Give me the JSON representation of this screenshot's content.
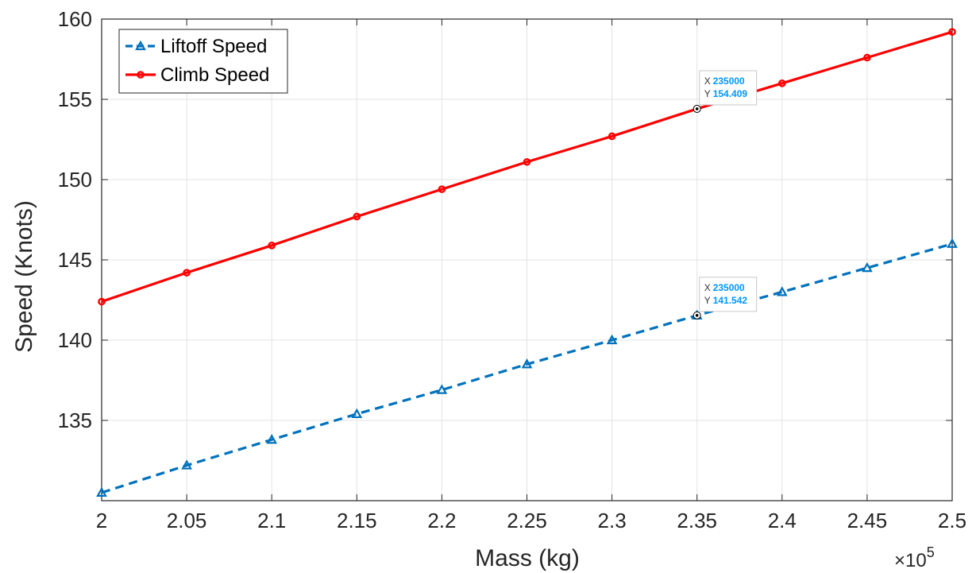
{
  "chart_data": {
    "type": "line",
    "title": "",
    "xlabel": "Mass (kg)",
    "ylabel": "Speed (Knots)",
    "x_exponent_label": "×10",
    "x_exponent_power": "5",
    "xlim": [
      2.0,
      2.5
    ],
    "ylim": [
      130,
      160
    ],
    "grid": true,
    "legend_position": "top-left",
    "x": [
      2.0,
      2.05,
      2.1,
      2.15,
      2.2,
      2.25,
      2.3,
      2.35,
      2.4,
      2.45,
      2.5
    ],
    "x_ticks": [
      2.0,
      2.05,
      2.1,
      2.15,
      2.2,
      2.25,
      2.3,
      2.35,
      2.4,
      2.45,
      2.5
    ],
    "x_tick_labels": [
      "2",
      "2.05",
      "2.1",
      "2.15",
      "2.2",
      "2.25",
      "2.3",
      "2.35",
      "2.4",
      "2.45",
      "2.5"
    ],
    "y_ticks": [
      135,
      140,
      145,
      150,
      155,
      160
    ],
    "y_tick_labels": [
      "135",
      "140",
      "145",
      "150",
      "155",
      "160"
    ],
    "series": [
      {
        "name": "Liftoff Speed",
        "color": "#0072bd",
        "line_style": "dashed",
        "marker": "triangle",
        "values": [
          130.5,
          132.2,
          133.8,
          135.4,
          136.9,
          138.5,
          140.0,
          141.542,
          143.0,
          144.5,
          146.0
        ]
      },
      {
        "name": "Climb Speed",
        "color": "#ff0000",
        "line_style": "solid",
        "marker": "circle",
        "values": [
          142.4,
          144.2,
          145.9,
          147.7,
          149.4,
          151.1,
          152.7,
          154.409,
          156.0,
          157.6,
          159.2
        ]
      }
    ],
    "datatips": [
      {
        "series": 1,
        "x_label": "X",
        "x_value": "235000",
        "y_label": "Y",
        "y_value": "154.409",
        "x": 2.35,
        "y": 154.409
      },
      {
        "series": 0,
        "x_label": "X",
        "x_value": "235000",
        "y_label": "Y",
        "y_value": "141.542",
        "x": 2.35,
        "y": 141.542
      }
    ]
  }
}
